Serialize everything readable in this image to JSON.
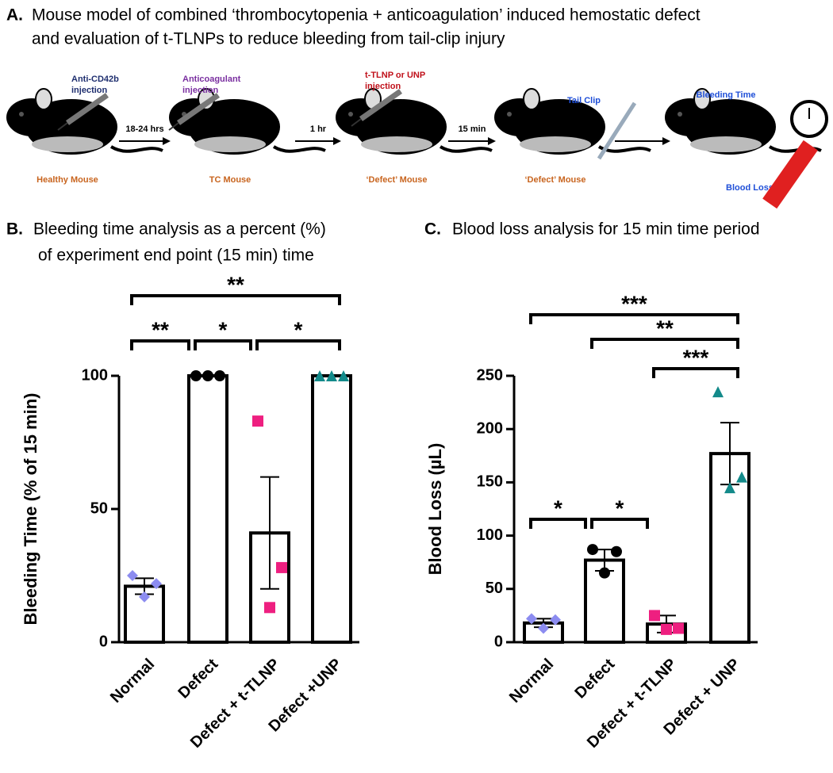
{
  "panel_a": {
    "label": "A.",
    "title": [
      "Mouse model of combined ‘thrombocytopenia + anticoagulation’ induced hemostatic defect",
      "and evaluation of t-TLNPs to reduce bleeding from tail-clip injury"
    ],
    "stages": [
      {
        "name": "Healthy Mouse",
        "treatment": [
          "Anti-CD42b",
          "injection"
        ]
      },
      {
        "name": "TC Mouse",
        "treatment": [
          "Anticoagulant",
          "injection"
        ]
      },
      {
        "name": "‘Defect’ Mouse",
        "treatment": [
          "t-TLNP or UNP",
          "injection"
        ]
      },
      {
        "name": "‘Defect’ Mouse",
        "treatment": [
          "Tail Clip"
        ]
      }
    ],
    "intervals": [
      "18-24 hrs",
      "1 hr",
      "15 min"
    ],
    "outcomes": [
      "Bleeding Time",
      "Blood Loss"
    ]
  },
  "chart_data": [
    {
      "type": "bar",
      "label": "B.",
      "title": [
        "Bleeding time analysis as a percent (%)",
        "of experiment end point (15 min) time"
      ],
      "y_label": "Bleeding Time (% of 15 min)",
      "categories": [
        "Normal",
        "Defect",
        "Defect + t-TLNP",
        "Defect +UNP"
      ],
      "values": [
        21,
        100,
        41,
        100
      ],
      "errors": [
        3,
        0,
        21,
        0
      ],
      "points": [
        [
          25,
          22,
          17
        ],
        [
          100,
          100,
          100
        ],
        [
          83,
          28,
          13
        ],
        [
          100,
          100,
          100
        ]
      ],
      "colors": [
        "#8c8cf0",
        "#000000",
        "#ee1f80",
        "#138a8a"
      ],
      "markers": [
        "diamond",
        "circle",
        "square",
        "triangle"
      ],
      "ylim": [
        0,
        100
      ],
      "yticks": [
        0,
        50,
        100
      ],
      "comparisons": [
        {
          "groups": [
            "Normal",
            "Defect"
          ],
          "label": "**"
        },
        {
          "groups": [
            "Defect",
            "Defect + t-TLNP"
          ],
          "label": "*"
        },
        {
          "groups": [
            "Defect + t-TLNP",
            "Defect +UNP"
          ],
          "label": "*"
        },
        {
          "groups": [
            "Normal",
            "Defect +UNP"
          ],
          "label": "**"
        }
      ]
    },
    {
      "type": "bar",
      "label": "C.",
      "title": [
        "Blood loss analysis for 15 min time period"
      ],
      "y_label": "Blood Loss (µL)",
      "categories": [
        "Normal",
        "Defect",
        "Defect + t-TLNP",
        "Defect + UNP"
      ],
      "values": [
        18,
        77,
        17,
        177
      ],
      "errors": [
        4,
        10,
        8,
        29
      ],
      "points": [
        [
          22,
          21,
          13
        ],
        [
          87,
          85,
          65
        ],
        [
          25,
          13,
          12
        ],
        [
          235,
          155,
          145
        ]
      ],
      "colors": [
        "#8c8cf0",
        "#000000",
        "#ee1f80",
        "#138a8a"
      ],
      "markers": [
        "diamond",
        "circle",
        "square",
        "triangle"
      ],
      "ylim": [
        0,
        250
      ],
      "yticks": [
        0,
        50,
        100,
        150,
        200,
        250
      ],
      "comparisons": [
        {
          "groups": [
            "Normal",
            "Defect"
          ],
          "label": "*"
        },
        {
          "groups": [
            "Defect",
            "Defect + t-TLNP"
          ],
          "label": "*"
        },
        {
          "groups": [
            "Defect + t-TLNP",
            "Defect + UNP"
          ],
          "label": "***"
        },
        {
          "groups": [
            "Defect",
            "Defect + UNP"
          ],
          "label": "**"
        },
        {
          "groups": [
            "Normal",
            "Defect + UNP"
          ],
          "label": "***"
        }
      ]
    }
  ]
}
